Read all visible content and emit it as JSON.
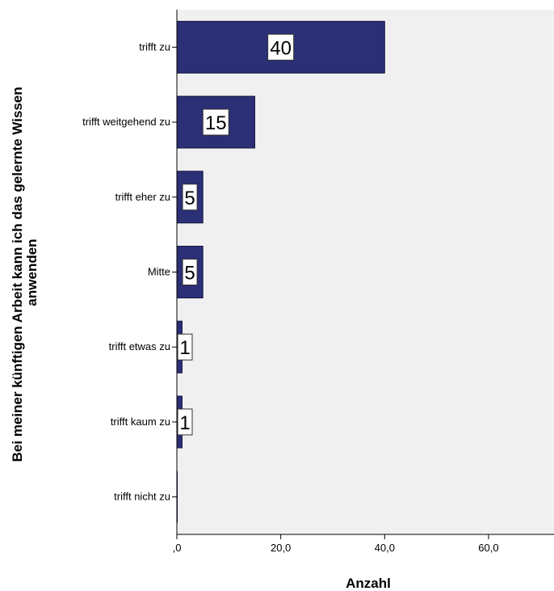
{
  "chart_data": {
    "type": "bar",
    "orientation": "horizontal",
    "categories": [
      "trifft zu",
      "trifft weitgehend zu",
      "trifft eher zu",
      "Mitte",
      "trifft etwas zu",
      "trifft kaum zu",
      "trifft nicht zu"
    ],
    "values": [
      40,
      15,
      5,
      5,
      1,
      1,
      0
    ],
    "data_labels": [
      "40",
      "15",
      "5",
      "5",
      "1",
      "1",
      ""
    ],
    "xlabel": "Anzahl",
    "ylabel": "Bei meiner künftigen Arbeit kann ich das gelernte Wissen anwenden",
    "ylabel_lines": [
      "Bei meiner künftigen Arbeit kann ich das gelernte Wissen",
      "anwenden"
    ],
    "xlim": [
      0,
      72.6
    ],
    "x_ticks": [
      0,
      20,
      40,
      60
    ],
    "x_tick_labels": [
      ",0",
      "20,0",
      "40,0",
      "60,0"
    ],
    "grid": false,
    "legend": "none",
    "colors": {
      "bar_fill": "#2B2F75",
      "bar_stroke": "#121445",
      "plot_bg": "#F0F0F0",
      "label_box": "#FFFFFF"
    }
  }
}
